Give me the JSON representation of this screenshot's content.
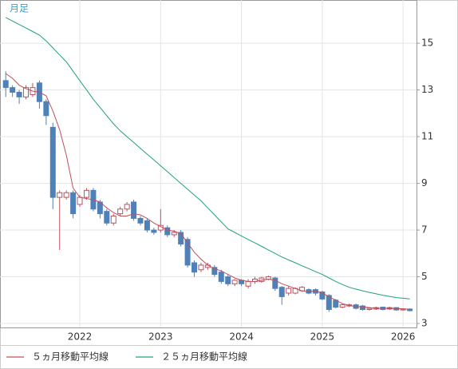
{
  "chart_data": {
    "type": "candlestick",
    "label": "月足",
    "categories": [
      null,
      null,
      null,
      null,
      null,
      null,
      null,
      null,
      null,
      null,
      null,
      "2022",
      null,
      null,
      null,
      null,
      null,
      null,
      null,
      null,
      null,
      null,
      null,
      "2023",
      null,
      null,
      null,
      null,
      null,
      null,
      null,
      null,
      null,
      null,
      null,
      "2024",
      null,
      null,
      null,
      null,
      null,
      null,
      null,
      null,
      null,
      null,
      null,
      "2025",
      null,
      null,
      null,
      null,
      null,
      null,
      null,
      null,
      null,
      null,
      null,
      "2026",
      null
    ],
    "open": [
      13.4,
      13.1,
      12.9,
      12.7,
      12.8,
      13.3,
      12.5,
      11.4,
      8.4,
      8.4,
      8.6,
      8.1,
      8.4,
      8.7,
      8.2,
      7.8,
      7.3,
      7.7,
      7.9,
      8.2,
      7.5,
      7.4,
      7.0,
      7.0,
      7.1,
      6.8,
      6.9,
      6.6,
      5.6,
      5.3,
      5.4,
      5.4,
      5.2,
      5.0,
      4.7,
      4.85,
      4.6,
      4.8,
      4.8,
      4.9,
      4.95,
      4.55,
      4.3,
      4.3,
      4.4,
      4.45,
      4.45,
      4.35,
      4.2,
      4.0,
      3.7,
      3.75,
      3.8,
      3.75,
      3.6,
      3.62,
      3.7,
      3.62,
      3.68,
      3.58,
      3.62
    ],
    "high": [
      13.8,
      13.2,
      13.0,
      13.2,
      13.3,
      13.4,
      12.6,
      11.6,
      8.7,
      8.7,
      8.7,
      8.5,
      8.8,
      8.8,
      8.3,
      7.9,
      7.7,
      8.0,
      8.2,
      8.3,
      7.6,
      7.5,
      7.1,
      7.9,
      7.2,
      7.0,
      7.0,
      6.7,
      5.7,
      5.6,
      5.6,
      5.5,
      5.3,
      5.1,
      4.9,
      4.9,
      4.9,
      5.0,
      5.0,
      5.05,
      5.0,
      4.6,
      4.6,
      4.55,
      4.6,
      4.5,
      4.5,
      4.4,
      4.25,
      4.05,
      3.85,
      3.85,
      3.85,
      3.8,
      3.7,
      3.72,
      3.72,
      3.72,
      3.7,
      3.65,
      3.65
    ],
    "low": [
      12.7,
      12.7,
      12.4,
      12.6,
      12.7,
      12.2,
      11.5,
      7.9,
      6.15,
      8.3,
      7.5,
      8.0,
      8.3,
      7.8,
      7.5,
      7.2,
      7.2,
      7.6,
      7.8,
      7.4,
      7.2,
      6.9,
      6.8,
      6.9,
      6.7,
      6.7,
      6.3,
      5.4,
      5.0,
      5.2,
      5.3,
      5.0,
      4.7,
      4.6,
      4.6,
      4.6,
      4.5,
      4.7,
      4.75,
      4.85,
      4.4,
      3.8,
      4.2,
      4.25,
      4.35,
      4.25,
      4.2,
      4.0,
      3.5,
      3.65,
      3.65,
      3.7,
      3.6,
      3.55,
      3.55,
      3.58,
      3.56,
      3.58,
      3.55,
      3.55,
      3.52
    ],
    "close": [
      13.1,
      12.9,
      12.7,
      13.1,
      13.1,
      12.5,
      11.9,
      8.4,
      8.6,
      8.6,
      7.7,
      8.4,
      8.7,
      7.9,
      7.7,
      7.3,
      7.6,
      7.9,
      8.1,
      7.5,
      7.3,
      7.0,
      6.9,
      7.2,
      6.8,
      6.9,
      6.4,
      5.5,
      5.2,
      5.5,
      5.5,
      5.1,
      4.8,
      4.7,
      4.85,
      4.7,
      4.8,
      4.9,
      4.95,
      5.0,
      4.5,
      4.15,
      4.5,
      4.5,
      4.55,
      4.3,
      4.3,
      4.05,
      3.6,
      3.7,
      3.8,
      3.8,
      3.65,
      3.6,
      3.65,
      3.68,
      3.6,
      3.68,
      3.58,
      3.62,
      3.55
    ],
    "up_color": "#ffffff",
    "up_border": "#c05060",
    "down_color": "#4f81b9",
    "series": [
      {
        "name": "５ヵ月移動平均線",
        "color": "#c0505a",
        "values": [
          13.7,
          13.5,
          13.2,
          13.05,
          12.95,
          12.9,
          12.75,
          12.1,
          11.3,
          10.2,
          8.8,
          8.4,
          8.35,
          8.3,
          8.2,
          7.95,
          7.75,
          7.6,
          7.6,
          7.7,
          7.65,
          7.5,
          7.3,
          7.15,
          7.0,
          6.95,
          6.85,
          6.45,
          6.05,
          5.75,
          5.5,
          5.35,
          5.25,
          5.1,
          4.95,
          4.85,
          4.8,
          4.8,
          4.85,
          4.9,
          4.85,
          4.7,
          4.6,
          4.5,
          4.4,
          4.35,
          4.4,
          4.3,
          4.15,
          4.0,
          3.85,
          3.78,
          3.72,
          3.72,
          3.68,
          3.65,
          3.65,
          3.65,
          3.64,
          3.63,
          3.61
        ]
      },
      {
        "name": "２５ヵ月移動平均線",
        "color": "#20a080",
        "values": [
          16.1,
          15.95,
          15.8,
          15.65,
          15.5,
          15.35,
          15.1,
          14.8,
          14.5,
          14.2,
          13.8,
          13.4,
          13.0,
          12.6,
          12.25,
          11.9,
          11.55,
          11.25,
          11.0,
          10.75,
          10.5,
          10.25,
          10.0,
          9.75,
          9.5,
          9.25,
          9.0,
          8.75,
          8.5,
          8.25,
          7.95,
          7.65,
          7.35,
          7.05,
          6.9,
          6.75,
          6.6,
          6.45,
          6.3,
          6.15,
          6.0,
          5.85,
          5.72,
          5.6,
          5.47,
          5.35,
          5.22,
          5.1,
          4.95,
          4.8,
          4.67,
          4.55,
          4.47,
          4.4,
          4.33,
          4.27,
          4.21,
          4.16,
          4.11,
          4.08,
          4.05
        ]
      }
    ],
    "ylim": [
      2.83,
      16.85
    ],
    "yticks": [
      3,
      5,
      7,
      9,
      11,
      13,
      15
    ],
    "grid": true
  }
}
